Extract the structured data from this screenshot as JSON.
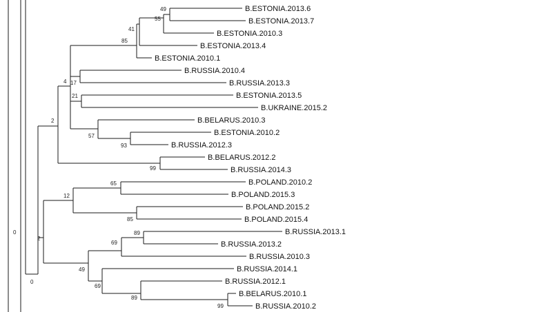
{
  "tree": {
    "support": [
      "49",
      "55",
      "41",
      "85",
      "4",
      "17",
      "21",
      "57",
      "93",
      "2",
      "99",
      "65",
      "12",
      "85",
      "89",
      "69",
      "49",
      "69",
      "89",
      "99",
      "0",
      "0",
      "2"
    ],
    "leaves": [
      "B.ESTONIA.2013.6",
      "B.ESTONIA.2013.7",
      "B.ESTONIA.2010.3",
      "B.ESTONIA.2013.4",
      "B.ESTONIA.2010.1",
      "B.RUSSIA.2010.4",
      "B.RUSSIA.2013.3",
      "B.ESTONIA.2013.5",
      "B.UKRAINE.2015.2",
      "B.BELARUS.2010.3",
      "B.ESTONIA.2010.2",
      "B.RUSSIA.2012.3",
      "B.BELARUS.2012.2",
      "B.RUSSIA.2014.3",
      "B.POLAND.2010.2",
      "B.POLAND.2015.3",
      "B.POLAND.2015.2",
      "B.POLAND.2015.4",
      "B.RUSSIA.2013.1",
      "B.RUSSIA.2013.2",
      "B.RUSSIA.2010.3",
      "B.RUSSIA.2014.1",
      "B.RUSSIA.2012.1",
      "B.BELARUS.2010.1",
      "B.RUSSIA.2010.2"
    ]
  }
}
